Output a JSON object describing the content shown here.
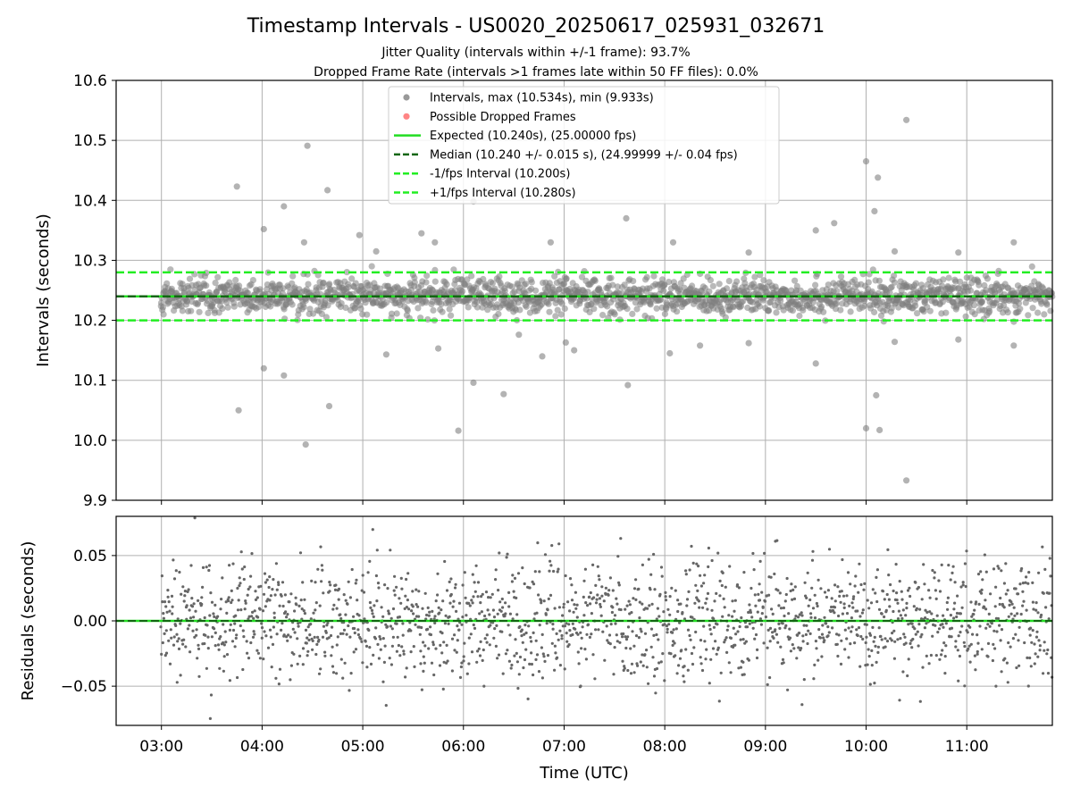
{
  "title": "Timestamp Intervals - US0020_20250617_025931_032671",
  "subtitle_1": "Jitter Quality (intervals within +/-1 frame): 93.7%",
  "subtitle_2": "Dropped Frame Rate (intervals >1 frames late within 50 FF files): 0.0%",
  "colors": {
    "interval_points": "#808080",
    "dropped_points": "#ff6666",
    "expected_line": "#22dd22",
    "median_line": "#116611",
    "bound_lines": "#22ee22",
    "grid": "#b0b0b0"
  },
  "chart_data": [
    {
      "type": "scatter",
      "name": "intervals-panel",
      "ylabel": "Intervals (seconds)",
      "xlabel": "",
      "ylim": [
        9.9,
        10.6
      ],
      "yticks": [
        "9.9",
        "10.0",
        "10.1",
        "10.2",
        "10.3",
        "10.4",
        "10.5",
        "10.6"
      ],
      "grid": true,
      "legend_position": "top-center",
      "legend": [
        {
          "label": "Intervals, max (10.534s), min (9.933s)",
          "marker": "point",
          "color": "#808080"
        },
        {
          "label": "Possible Dropped Frames",
          "marker": "point",
          "color": "#ff6666"
        },
        {
          "label": "Expected (10.240s), (25.00000 fps)",
          "marker": "solid",
          "color": "#22dd22"
        },
        {
          "label": "Median (10.240 +/- 0.015 s), (24.99999 +/- 0.04 fps)",
          "marker": "dashed",
          "color": "#116611"
        },
        {
          "label": "-1/fps Interval (10.200s)",
          "marker": "dashed",
          "color": "#22ee22"
        },
        {
          "label": "+1/fps Interval (10.280s)",
          "marker": "dashed",
          "color": "#22ee22"
        }
      ],
      "reference_lines": {
        "expected": 10.24,
        "median": 10.24,
        "minus_interval": 10.2,
        "plus_interval": 10.28
      },
      "bulk_band": {
        "center": 10.24,
        "std": 0.015,
        "approx_count": 1800
      },
      "outliers": [
        {
          "x": "03:45",
          "y": 10.423
        },
        {
          "x": "03:46",
          "y": 10.05
        },
        {
          "x": "04:01",
          "y": 10.352
        },
        {
          "x": "04:01",
          "y": 10.12
        },
        {
          "x": "04:13",
          "y": 10.39
        },
        {
          "x": "04:13",
          "y": 10.108
        },
        {
          "x": "04:25",
          "y": 10.33
        },
        {
          "x": "04:26",
          "y": 9.993
        },
        {
          "x": "04:27",
          "y": 10.491
        },
        {
          "x": "04:39",
          "y": 10.417
        },
        {
          "x": "04:40",
          "y": 10.057
        },
        {
          "x": "04:58",
          "y": 10.342
        },
        {
          "x": "05:08",
          "y": 10.315
        },
        {
          "x": "05:14",
          "y": 10.143
        },
        {
          "x": "05:35",
          "y": 10.345
        },
        {
          "x": "05:43",
          "y": 10.33
        },
        {
          "x": "05:45",
          "y": 10.153
        },
        {
          "x": "05:57",
          "y": 10.016
        },
        {
          "x": "06:06",
          "y": 10.398
        },
        {
          "x": "06:06",
          "y": 10.096
        },
        {
          "x": "06:24",
          "y": 10.077
        },
        {
          "x": "06:33",
          "y": 10.176
        },
        {
          "x": "06:47",
          "y": 10.14
        },
        {
          "x": "06:52",
          "y": 10.33
        },
        {
          "x": "07:01",
          "y": 10.163
        },
        {
          "x": "07:06",
          "y": 10.15
        },
        {
          "x": "07:37",
          "y": 10.37
        },
        {
          "x": "07:38",
          "y": 10.092
        },
        {
          "x": "08:03",
          "y": 10.145
        },
        {
          "x": "08:05",
          "y": 10.33
        },
        {
          "x": "08:21",
          "y": 10.158
        },
        {
          "x": "08:50",
          "y": 10.313
        },
        {
          "x": "08:50",
          "y": 10.162
        },
        {
          "x": "09:30",
          "y": 10.35
        },
        {
          "x": "09:30",
          "y": 10.128
        },
        {
          "x": "09:41",
          "y": 10.362
        },
        {
          "x": "10:00",
          "y": 10.465
        },
        {
          "x": "10:00",
          "y": 10.02
        },
        {
          "x": "10:05",
          "y": 10.382
        },
        {
          "x": "10:06",
          "y": 10.075
        },
        {
          "x": "10:07",
          "y": 10.438
        },
        {
          "x": "10:08",
          "y": 10.017
        },
        {
          "x": "10:17",
          "y": 10.315
        },
        {
          "x": "10:17",
          "y": 10.164
        },
        {
          "x": "10:24",
          "y": 10.534
        },
        {
          "x": "10:24",
          "y": 9.933
        },
        {
          "x": "10:55",
          "y": 10.313
        },
        {
          "x": "10:55",
          "y": 10.168
        },
        {
          "x": "11:28",
          "y": 10.33
        },
        {
          "x": "11:28",
          "y": 10.158
        }
      ]
    },
    {
      "type": "scatter",
      "name": "residuals-panel",
      "ylabel": "Residuals (seconds)",
      "xlabel": "Time (UTC)",
      "ylim": [
        -0.08,
        0.08
      ],
      "yticks": [
        "−0.05",
        "0.00",
        "0.05"
      ],
      "xlim": [
        "02:33",
        "11:51"
      ],
      "xticks": [
        "03:00",
        "04:00",
        "05:00",
        "06:00",
        "07:00",
        "08:00",
        "09:00",
        "10:00",
        "11:00"
      ],
      "grid": true,
      "reference_lines": {
        "zero": 0.0
      },
      "bulk_band": {
        "center": 0.0,
        "std": 0.022,
        "approx_count": 1800
      }
    }
  ]
}
